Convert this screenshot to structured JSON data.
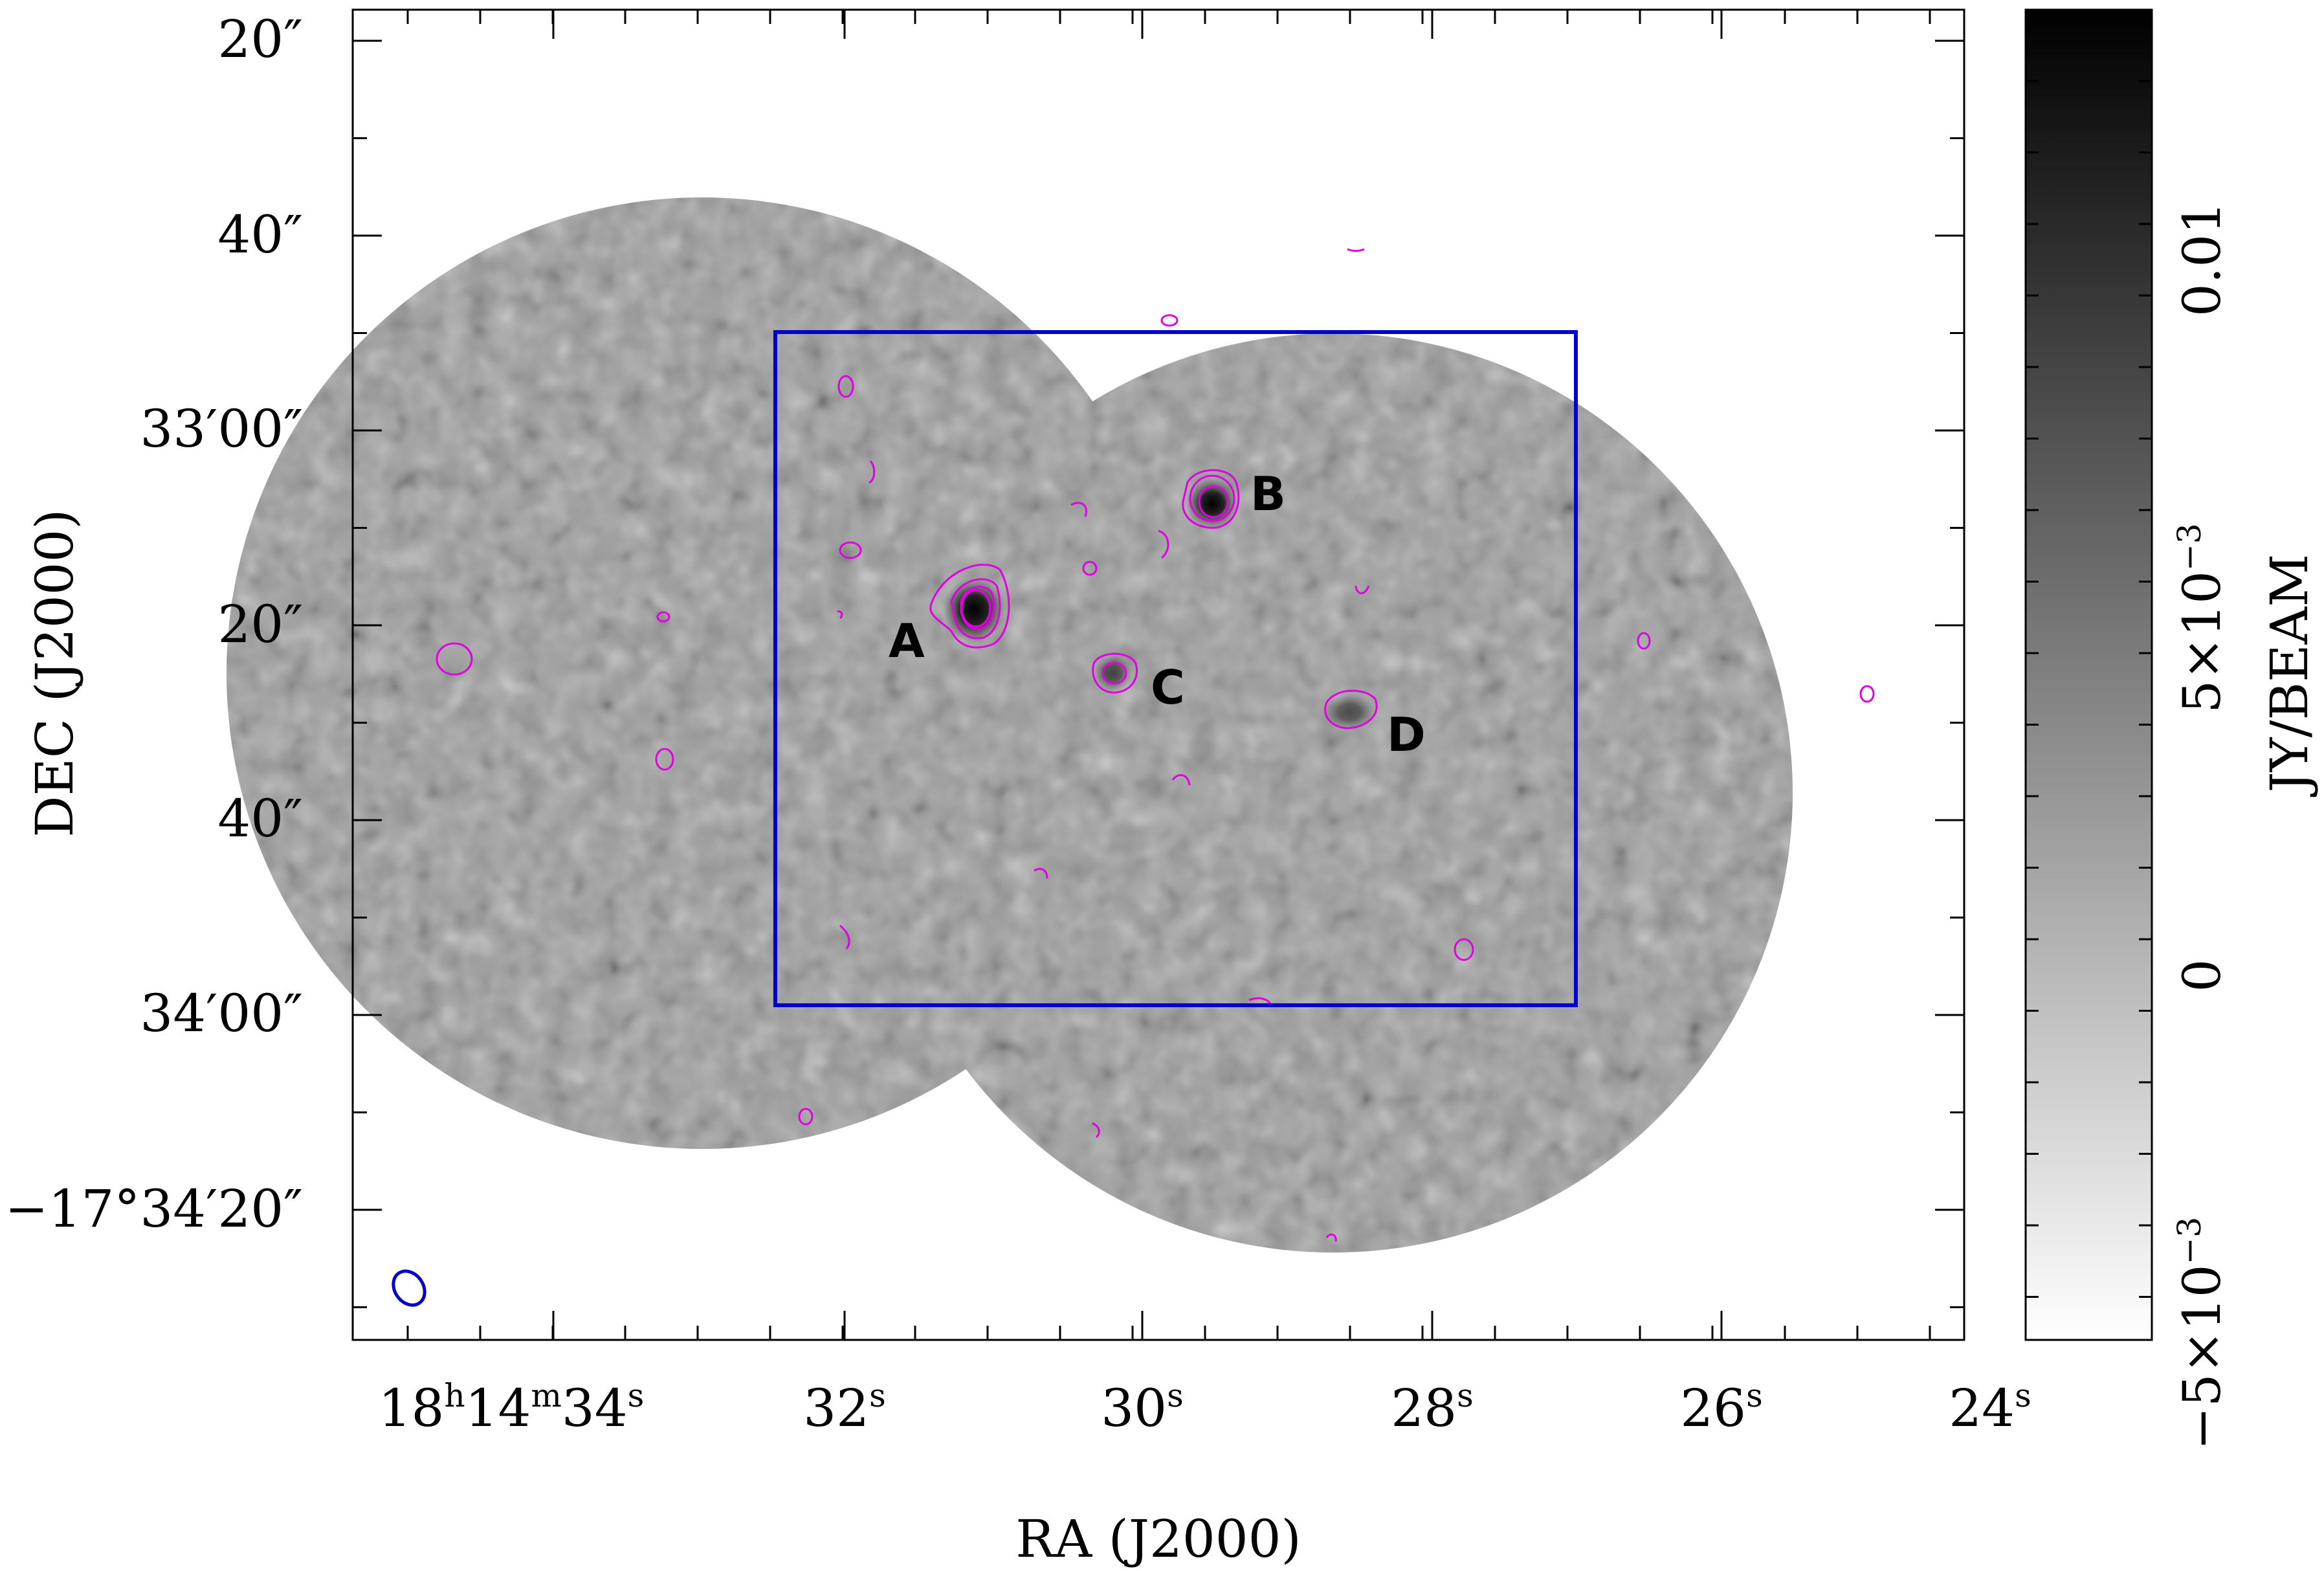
{
  "figure": {
    "x_axis_label": "RA (J2000)",
    "y_axis_label": "DEC (J2000)",
    "colorbar_label": "JY/BEAM",
    "x_ticks": [
      {
        "text": "18h14m34s",
        "parts": [
          "18",
          "h",
          "14",
          "m",
          "34",
          "s"
        ],
        "ra_sec": 34
      },
      {
        "text": "32s",
        "parts": [
          "32",
          "s"
        ],
        "ra_sec": 32
      },
      {
        "text": "30s",
        "parts": [
          "30",
          "s"
        ],
        "ra_sec": 30
      },
      {
        "text": "28s",
        "parts": [
          "28",
          "s"
        ],
        "ra_sec": 28
      },
      {
        "text": "26s",
        "parts": [
          "26",
          "s"
        ],
        "ra_sec": 26
      },
      {
        "text": "24s",
        "parts": [
          "24",
          "s"
        ],
        "ra_sec": 24
      }
    ],
    "y_ticks": [
      {
        "text": "20″",
        "dec_arcsec": -1980
      },
      {
        "text": "40″",
        "dec_arcsec": -2000
      },
      {
        "text": "33′00″",
        "dec_arcsec": -2020
      },
      {
        "text": "20″",
        "dec_arcsec": -2040
      },
      {
        "text": "40″",
        "dec_arcsec": -2060
      },
      {
        "text": "34′00″",
        "dec_arcsec": -2080
      },
      {
        "text": "−17°34′20″",
        "dec_arcsec": -2100
      }
    ],
    "colorbar_ticks": [
      {
        "text": "0.01",
        "value": 0.01
      },
      {
        "text": "5×10−3",
        "base": "5×10",
        "exp": "−3",
        "value": 0.005
      },
      {
        "text": "0",
        "value": 0
      },
      {
        "text": "−5×10−3",
        "base": "−5×10",
        "exp": "−3",
        "value": -0.005
      }
    ],
    "colorbar_range": [
      -0.0055,
      0.0132
    ],
    "sources": [
      {
        "label": "A",
        "ra_sec": 30.95,
        "dec_arcsec": -2044
      },
      {
        "label": "B",
        "ra_sec": 29.2,
        "dec_arcsec": -2027
      },
      {
        "label": "C",
        "ra_sec": 29.9,
        "dec_arcsec": -2050
      },
      {
        "label": "D",
        "ra_sec": 28.3,
        "dec_arcsec": -2055
      }
    ],
    "colors": {
      "contour": "#e000e0",
      "box": "#0000cc",
      "beam": "#0000cc",
      "map_gray": "#9c9c9c"
    },
    "icons": {
      "beam": "ellipse",
      "box": "rectangle"
    }
  }
}
